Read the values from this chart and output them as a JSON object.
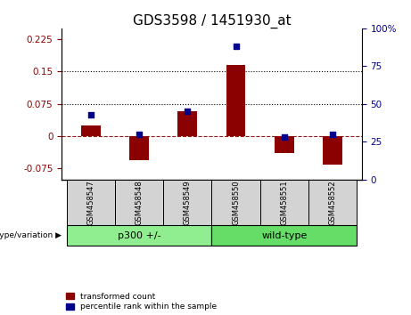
{
  "title": "GDS3598 / 1451930_at",
  "samples": [
    "GSM458547",
    "GSM458548",
    "GSM458549",
    "GSM458550",
    "GSM458551",
    "GSM458552"
  ],
  "transformed_count": [
    0.025,
    -0.055,
    0.058,
    0.165,
    -0.04,
    -0.065
  ],
  "percentile_rank": [
    43,
    30,
    45,
    88,
    28,
    30
  ],
  "groups": [
    {
      "label": "p300 +/-",
      "indices": [
        0,
        1,
        2
      ],
      "color": "#90EE90"
    },
    {
      "label": "wild-type",
      "indices": [
        3,
        4,
        5
      ],
      "color": "#66DD66"
    }
  ],
  "bar_color": "#8B0000",
  "dot_color": "#00008B",
  "left_ylim": [
    -0.1,
    0.25
  ],
  "right_ylim": [
    0,
    100
  ],
  "left_yticks": [
    -0.075,
    0,
    0.075,
    0.15,
    0.225
  ],
  "right_yticks": [
    0,
    25,
    50,
    75,
    100
  ],
  "hlines_y": [
    0.075,
    0.15
  ],
  "title_fontsize": 11,
  "tick_fontsize": 7.5,
  "sample_box_color": "#d3d3d3",
  "legend_red_label": "transformed count",
  "legend_blue_label": "percentile rank within the sample",
  "group_label": "genotype/variation"
}
